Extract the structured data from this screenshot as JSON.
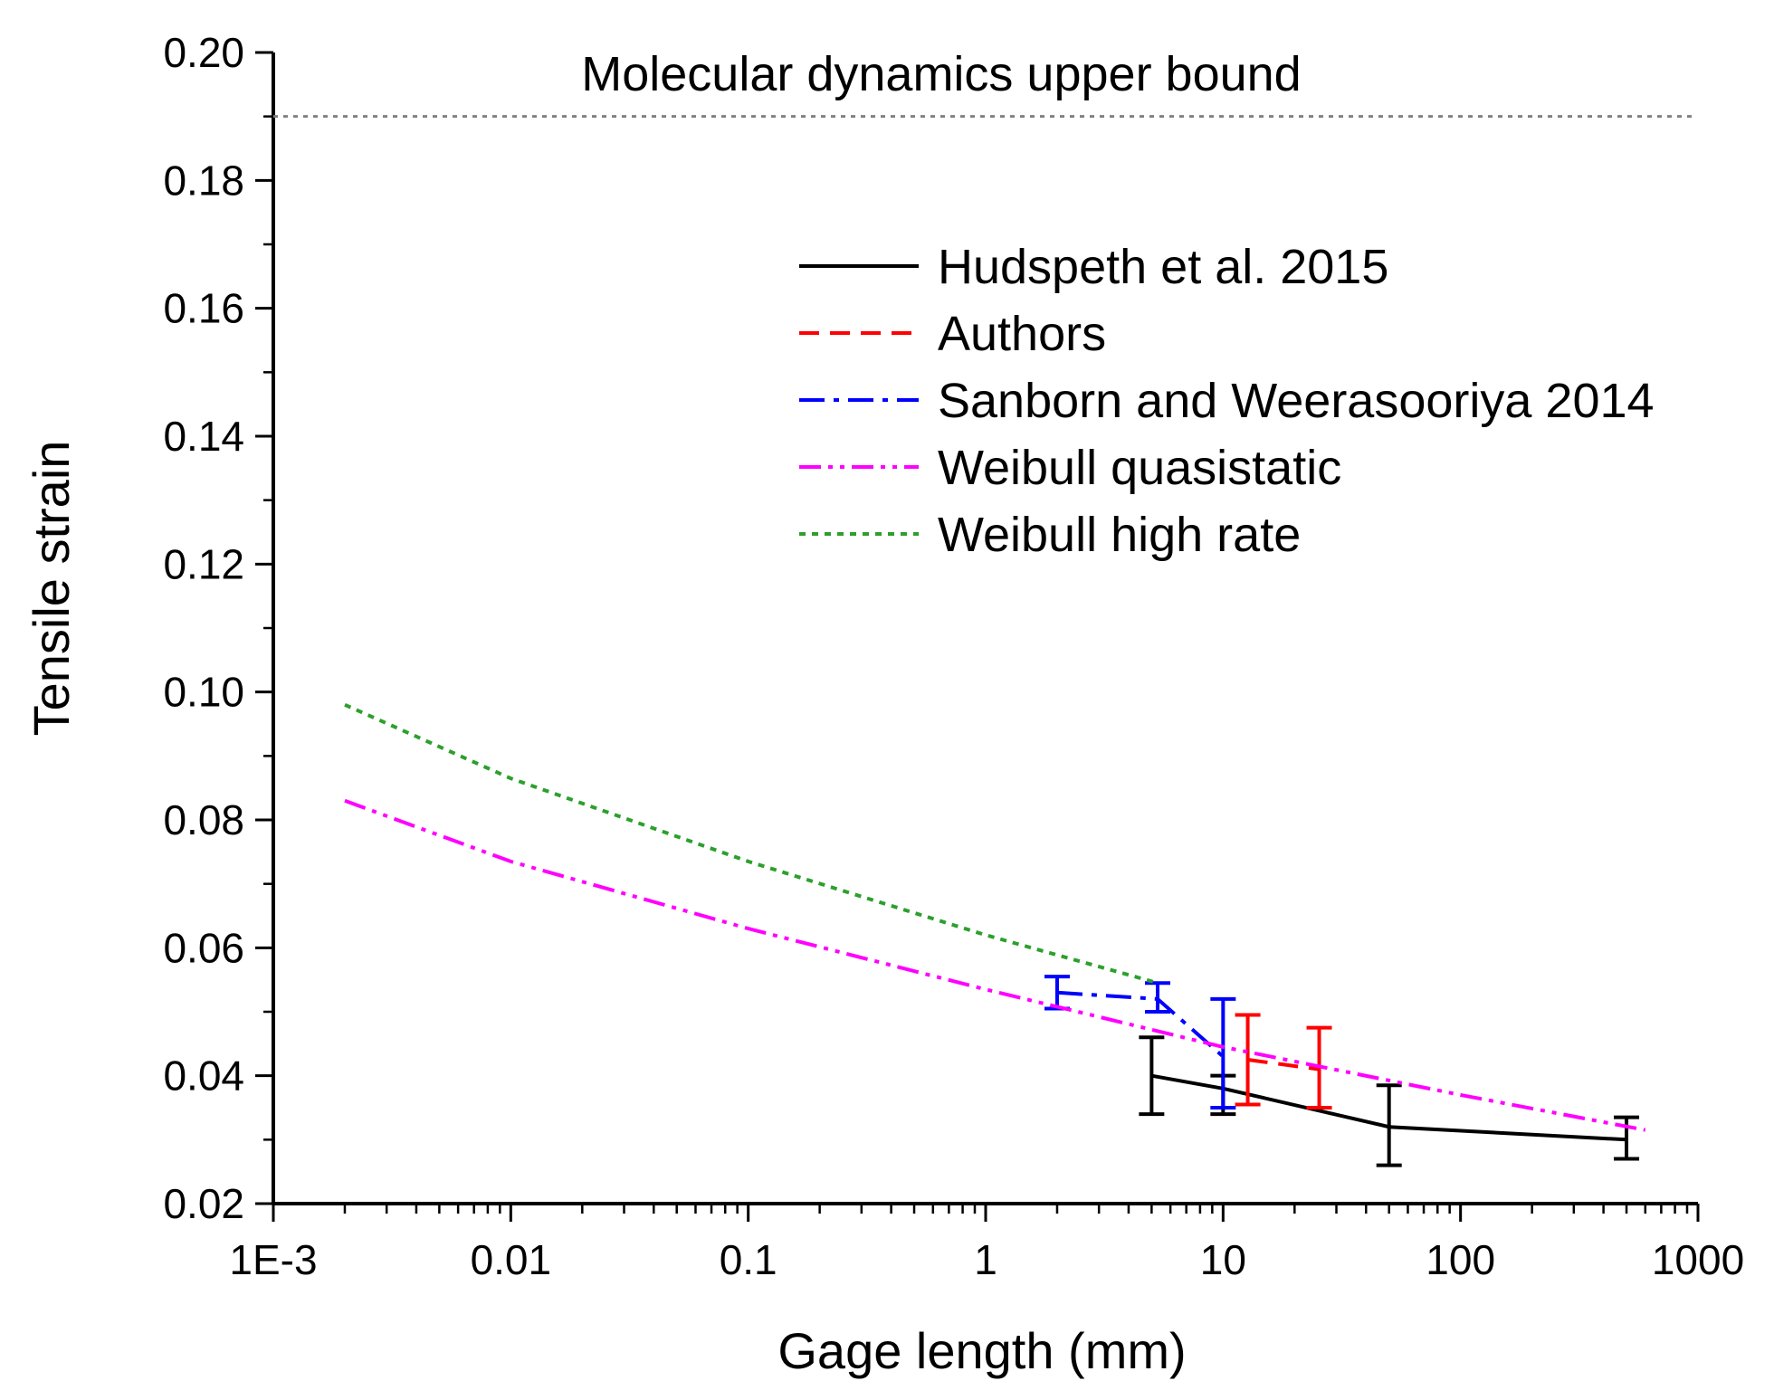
{
  "chart_data": {
    "type": "line",
    "title": "",
    "xlabel": "Gage length (mm)",
    "ylabel": "Tensile strain",
    "xscale": "log",
    "xlim": [
      0.001,
      1000
    ],
    "ylim": [
      0.02,
      0.2
    ],
    "xticks": [
      0.001,
      0.01,
      0.1,
      1,
      10,
      100,
      1000
    ],
    "xtick_labels": [
      "1E-3",
      "0.01",
      "0.1",
      "1",
      "10",
      "100",
      "1000"
    ],
    "yticks": [
      0.02,
      0.04,
      0.06,
      0.08,
      0.1,
      0.12,
      0.14,
      0.16,
      0.18,
      0.2
    ],
    "ytick_labels": [
      "0.02",
      "0.04",
      "0.06",
      "0.08",
      "0.10",
      "0.12",
      "0.14",
      "0.16",
      "0.18",
      "0.20"
    ],
    "grid": false,
    "legend_position": "upper-right",
    "reference_line": {
      "label": "Molecular dynamics upper bound",
      "y": 0.19,
      "color": "#808080",
      "style": "dotted"
    },
    "series": [
      {
        "name": "Hudspeth et al. 2015",
        "color": "#000000",
        "style": "solid",
        "x": [
          5,
          10,
          50,
          500
        ],
        "y": [
          0.04,
          0.038,
          0.032,
          0.03
        ],
        "err_low": [
          0.034,
          0.034,
          0.026,
          0.027
        ],
        "err_high": [
          0.046,
          0.04,
          0.0385,
          0.0335
        ]
      },
      {
        "name": "Authors",
        "color": "#ff0000",
        "style": "dashed",
        "x": [
          12.7,
          25.4
        ],
        "y": [
          0.0425,
          0.041
        ],
        "err_low": [
          0.0355,
          0.035
        ],
        "err_high": [
          0.0495,
          0.0475
        ]
      },
      {
        "name": "Sanborn and Weerasooriya 2014",
        "color": "#0000ff",
        "style": "dashdot",
        "x": [
          2,
          5.3,
          10
        ],
        "y": [
          0.053,
          0.052,
          0.043
        ],
        "err_low": [
          0.0505,
          0.05,
          0.035
        ],
        "err_high": [
          0.0555,
          0.0545,
          0.052
        ]
      },
      {
        "name": "Weibull quasistatic",
        "color": "#ff00ff",
        "style": "dashdotdot",
        "x": [
          0.002,
          0.01,
          0.1,
          1,
          10,
          100,
          600
        ],
        "y": [
          0.083,
          0.0735,
          0.063,
          0.0535,
          0.0445,
          0.037,
          0.0315
        ]
      },
      {
        "name": "Weibull high rate",
        "color": "#2ca02c",
        "style": "dotted",
        "x": [
          0.002,
          0.01,
          0.1,
          1,
          5.3
        ],
        "y": [
          0.098,
          0.0865,
          0.0735,
          0.062,
          0.0545
        ]
      }
    ]
  }
}
